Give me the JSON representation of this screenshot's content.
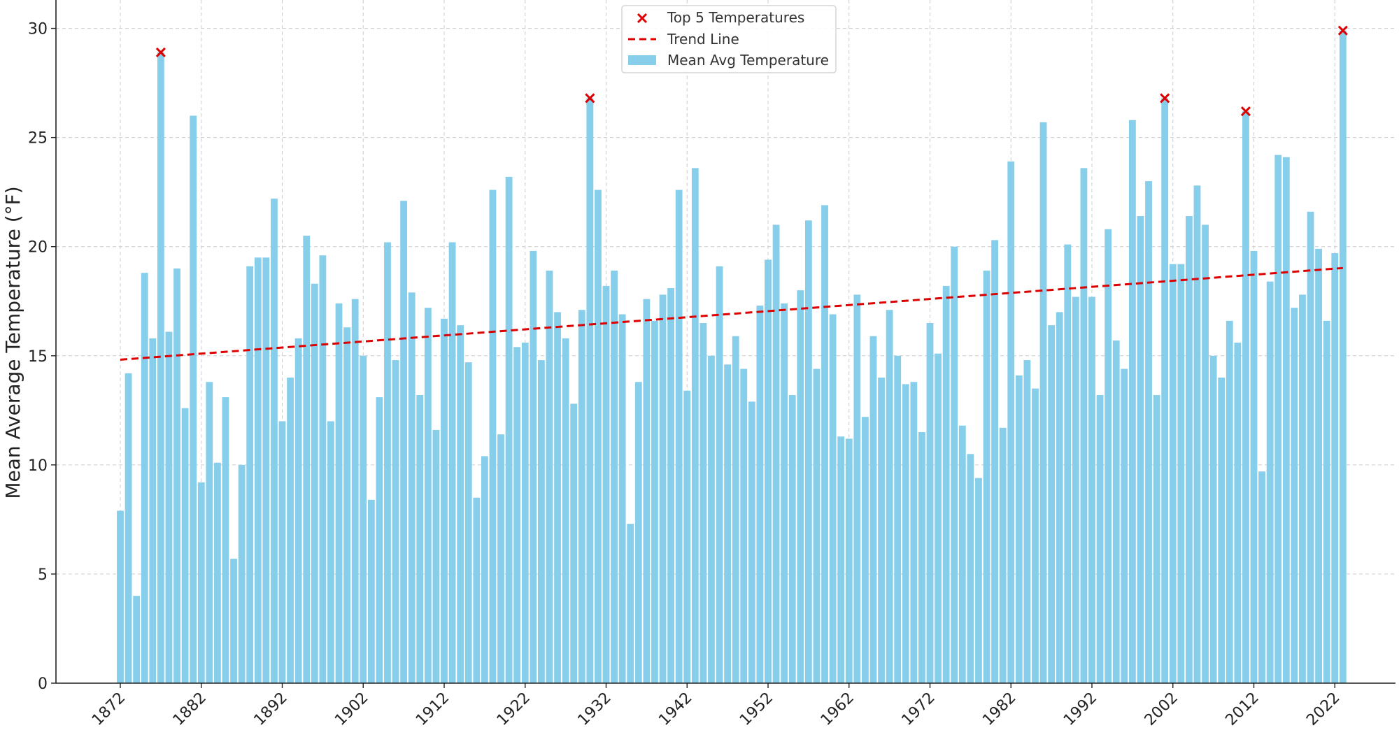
{
  "chart_data": {
    "type": "bar",
    "ylabel": "Mean Average Temperature (°F)",
    "xlabel": "",
    "ylim": [
      0,
      31.3
    ],
    "yticks": [
      0,
      5,
      10,
      15,
      20,
      25,
      30
    ],
    "xticks": [
      1872,
      1882,
      1892,
      1902,
      1912,
      1922,
      1932,
      1942,
      1952,
      1962,
      1972,
      1982,
      1992,
      2002,
      2012,
      2022
    ],
    "grid": true,
    "legend_position": "top-center",
    "colors": {
      "bar": "#87CEEB",
      "trend": "#DD0000",
      "marker": "#DD0000"
    },
    "x": [
      1872,
      1873,
      1874,
      1875,
      1876,
      1877,
      1878,
      1879,
      1880,
      1881,
      1882,
      1883,
      1884,
      1885,
      1886,
      1887,
      1888,
      1889,
      1890,
      1891,
      1892,
      1893,
      1894,
      1895,
      1896,
      1897,
      1898,
      1899,
      1900,
      1901,
      1902,
      1903,
      1904,
      1905,
      1906,
      1907,
      1908,
      1909,
      1910,
      1911,
      1912,
      1913,
      1914,
      1915,
      1916,
      1917,
      1918,
      1919,
      1920,
      1921,
      1922,
      1923,
      1924,
      1925,
      1926,
      1927,
      1928,
      1929,
      1930,
      1931,
      1932,
      1933,
      1934,
      1935,
      1936,
      1937,
      1938,
      1939,
      1940,
      1941,
      1942,
      1943,
      1944,
      1945,
      1946,
      1947,
      1948,
      1949,
      1950,
      1951,
      1952,
      1953,
      1954,
      1955,
      1956,
      1957,
      1958,
      1959,
      1960,
      1961,
      1962,
      1963,
      1964,
      1965,
      1966,
      1967,
      1968,
      1969,
      1970,
      1971,
      1972,
      1973,
      1974,
      1975,
      1976,
      1977,
      1978,
      1979,
      1980,
      1981,
      1982,
      1983,
      1984,
      1985,
      1986,
      1987,
      1988,
      1989,
      1990,
      1991,
      1992,
      1993,
      1994,
      1995,
      1996,
      1997,
      1998,
      1999,
      2000,
      2001,
      2002,
      2003,
      2004,
      2005,
      2006,
      2007,
      2008,
      2009,
      2010,
      2011,
      2012,
      2013,
      2014,
      2015,
      2016,
      2017,
      2018,
      2019,
      2020,
      2021,
      2022,
      2023
    ],
    "series": [
      {
        "name": "Mean Avg Temperature",
        "values": [
          7.9,
          14.2,
          4.0,
          18.8,
          15.8,
          28.9,
          16.1,
          19.0,
          12.6,
          26.0,
          9.2,
          13.8,
          10.1,
          13.1,
          5.7,
          10.0,
          19.1,
          19.5,
          19.5,
          22.2,
          12.0,
          14.0,
          15.8,
          20.5,
          18.3,
          19.6,
          12.0,
          17.4,
          16.3,
          17.6,
          15.0,
          8.4,
          13.1,
          20.2,
          14.8,
          22.1,
          17.9,
          13.2,
          17.2,
          11.6,
          16.7,
          20.2,
          16.4,
          14.7,
          8.5,
          10.4,
          22.6,
          11.4,
          23.2,
          15.4,
          15.6,
          19.8,
          14.8,
          18.9,
          17.0,
          15.8,
          12.8,
          17.1,
          26.8,
          22.6,
          18.2,
          18.9,
          16.9,
          7.3,
          13.8,
          17.6,
          16.6,
          17.8,
          18.1,
          22.6,
          13.4,
          23.6,
          16.5,
          15.0,
          19.1,
          14.6,
          15.9,
          14.4,
          12.9,
          17.3,
          19.4,
          21.0,
          17.4,
          13.2,
          18.0,
          21.2,
          14.4,
          21.9,
          16.9,
          11.3,
          11.2,
          17.8,
          12.2,
          15.9,
          14.0,
          17.1,
          15.0,
          13.7,
          13.8,
          11.5,
          16.5,
          15.1,
          18.2,
          20.0,
          11.8,
          10.5,
          9.4,
          18.9,
          20.3,
          11.7,
          23.9,
          14.1,
          14.8,
          13.5,
          25.7,
          16.4,
          17.0,
          20.1,
          17.7,
          23.6,
          17.7,
          13.2,
          20.8,
          15.7,
          14.4,
          25.8,
          21.4,
          23.0,
          13.2,
          26.8,
          19.2,
          19.2,
          21.4,
          22.8,
          21.0,
          15.0,
          14.0,
          16.6,
          15.6,
          26.2,
          19.8,
          9.7,
          18.4,
          24.2,
          24.1,
          17.2,
          17.8,
          21.6,
          19.9,
          16.6,
          19.7,
          29.9
        ]
      },
      {
        "name": "Trend Line",
        "type": "line",
        "x": [
          1872,
          2023
        ],
        "values": [
          14.82,
          19.02
        ]
      },
      {
        "name": "Top 5 Temperatures",
        "type": "scatter",
        "x": [
          1877,
          1930,
          2001,
          2011,
          2023
        ],
        "values": [
          28.9,
          26.8,
          26.8,
          26.2,
          29.9
        ]
      }
    ]
  }
}
